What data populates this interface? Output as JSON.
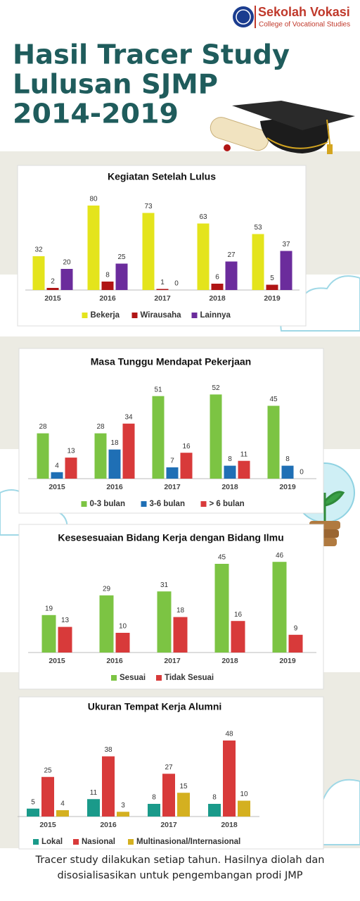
{
  "header": {
    "logo_title": "Sekolah Vokasi",
    "logo_subtitle": "College of Vocational Studies",
    "title_lines": [
      "Hasil Tracer Study",
      "Lulusan SJMP",
      "2014-2019"
    ]
  },
  "chart_data": [
    {
      "type": "bar",
      "title": "Kegiatan Setelah Lulus",
      "categories": [
        "2015",
        "2016",
        "2017",
        "2018",
        "2019"
      ],
      "series": [
        {
          "name": "Bekerja",
          "color": "#e4e41c",
          "values": [
            32,
            80,
            73,
            63,
            53
          ]
        },
        {
          "name": "Wirausaha",
          "color": "#b01515",
          "values": [
            2,
            8,
            1,
            6,
            5
          ]
        },
        {
          "name": "Lainnya",
          "color": "#6b2c9c",
          "values": [
            20,
            25,
            0,
            27,
            37
          ]
        }
      ]
    },
    {
      "type": "bar",
      "title": "Masa Tunggu Mendapat Pekerjaan",
      "categories": [
        "2015",
        "2016",
        "2017",
        "2018",
        "2019"
      ],
      "series": [
        {
          "name": "0-3 bulan",
          "color": "#7cc443",
          "values": [
            28,
            28,
            51,
            52,
            45
          ]
        },
        {
          "name": "3-6 bulan",
          "color": "#1f6fb5",
          "values": [
            4,
            18,
            7,
            8,
            8
          ]
        },
        {
          "name": "> 6 bulan",
          "color": "#d83a3a",
          "values": [
            13,
            34,
            16,
            11,
            0
          ]
        }
      ]
    },
    {
      "type": "bar",
      "title": "Kesesesuaian Bidang Kerja dengan Bidang Ilmu",
      "categories": [
        "2015",
        "2016",
        "2017",
        "2018",
        "2019"
      ],
      "series": [
        {
          "name": "Sesuai",
          "color": "#7cc443",
          "values": [
            19,
            29,
            31,
            45,
            46
          ]
        },
        {
          "name": "Tidak Sesuai",
          "color": "#d83a3a",
          "values": [
            13,
            10,
            18,
            16,
            9
          ]
        }
      ]
    },
    {
      "type": "bar",
      "title": "Ukuran Tempat Kerja Alumni",
      "categories": [
        "2015",
        "2016",
        "2017",
        "2018"
      ],
      "series": [
        {
          "name": "Lokal",
          "color": "#1a9a8a",
          "values": [
            5,
            11,
            8,
            8
          ]
        },
        {
          "name": "Nasional",
          "color": "#d83a3a",
          "values": [
            25,
            38,
            27,
            48
          ]
        },
        {
          "name": "Multinasional/Internasional",
          "color": "#d4b020",
          "values": [
            4,
            3,
            15,
            10
          ]
        }
      ]
    }
  ],
  "footer": "Tracer study dilakukan setiap tahun. Hasilnya diolah dan disosialisasikan untuk pengembangan prodi JMP"
}
